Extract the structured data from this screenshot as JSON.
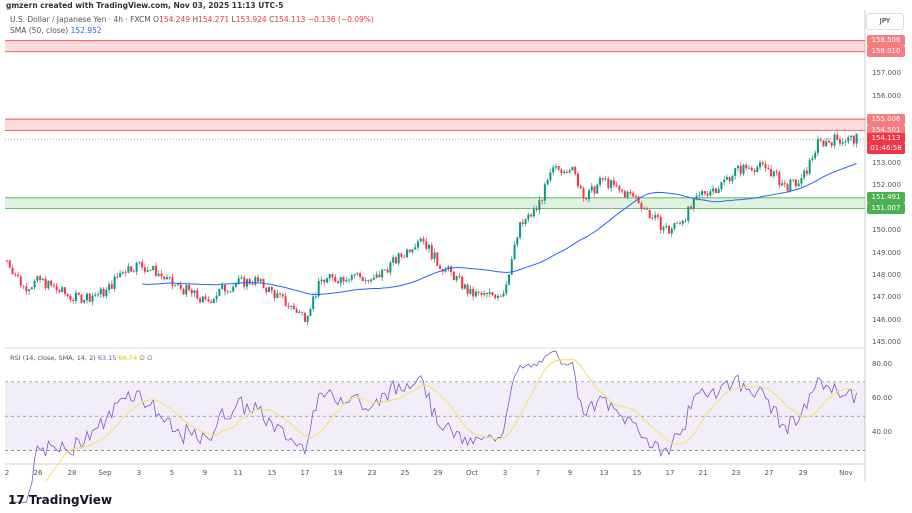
{
  "header": {
    "credit": "gmzern created with TradingView.com, Nov 03, 2025 11:13 UTC-5",
    "symbol": "U.S. Dollar / Japanese Yen · 4h · FXCM",
    "open_label": "O",
    "open": "154.249",
    "high_label": "H",
    "high": "154.271",
    "low_label": "L",
    "low": "153.924",
    "close_label": "C",
    "close": "154.113",
    "change": "−0.136 (−0.09%)",
    "sma_label": "SMA (50, close)",
    "sma_value": "152.952"
  },
  "rsi_legend": {
    "label": "RSI (14, close, SMA, 14, 2)",
    "rsi": "63.15",
    "rsi_sma": "66.74",
    "extra1": "∅",
    "extra2": "∅"
  },
  "currency": "JPY",
  "footer": {
    "logo": "TradingView"
  },
  "colors": {
    "up": "#089981",
    "down": "#f23645",
    "sma": "#2962ff",
    "rsi": "#7e57c2",
    "rsi_sma": "#f5e27a",
    "resistance_zone": "#f23645",
    "support_zone": "#4caf50"
  },
  "chart_data": {
    "type": "candlestick",
    "timeframe": "4h",
    "price_axis": {
      "ticks": [
        "157.000",
        "156.000",
        "153.000",
        "152.000",
        "150.000",
        "149.000",
        "148.000",
        "147.000",
        "146.000",
        "145.000"
      ],
      "range": [
        144.9,
        159.6
      ]
    },
    "zones": [
      {
        "type": "resistance",
        "top": "158.506",
        "bottom": "158.010"
      },
      {
        "type": "resistance",
        "top": "155.006",
        "bottom": "154.501"
      },
      {
        "type": "support",
        "top": "151.491",
        "bottom": "151.007"
      }
    ],
    "last_price": "154.113",
    "countdown": "01:46:58",
    "approx_closes": [
      [
        "2025-08-22",
        148.7
      ],
      [
        "2025-08-25",
        147.5
      ],
      [
        "2025-08-26",
        147.8
      ],
      [
        "2025-08-27",
        147.4
      ],
      [
        "2025-08-28",
        147.0
      ],
      [
        "2025-08-29",
        147.1
      ],
      [
        "2025-09-01",
        147.3
      ],
      [
        "2025-09-02",
        148.3
      ],
      [
        "2025-09-03",
        148.5
      ],
      [
        "2025-09-04",
        148.2
      ],
      [
        "2025-09-05",
        147.6
      ],
      [
        "2025-09-08",
        147.3
      ],
      [
        "2025-09-09",
        146.8
      ],
      [
        "2025-09-10",
        147.4
      ],
      [
        "2025-09-11",
        147.7
      ],
      [
        "2025-09-12",
        147.8
      ],
      [
        "2025-09-15",
        147.3
      ],
      [
        "2025-09-16",
        146.7
      ],
      [
        "2025-09-17",
        146.2
      ],
      [
        "2025-09-18",
        147.8
      ],
      [
        "2025-09-19",
        147.9
      ],
      [
        "2025-09-22",
        148.1
      ],
      [
        "2025-09-23",
        147.7
      ],
      [
        "2025-09-24",
        148.4
      ],
      [
        "2025-09-25",
        149.0
      ],
      [
        "2025-09-26",
        149.8
      ],
      [
        "2025-09-29",
        148.6
      ],
      [
        "2025-09-30",
        148.0
      ],
      [
        "2025-10-01",
        147.2
      ],
      [
        "2025-10-02",
        147.1
      ],
      [
        "2025-10-03",
        147.3
      ],
      [
        "2025-10-06",
        150.2
      ],
      [
        "2025-10-07",
        151.0
      ],
      [
        "2025-10-08",
        152.7
      ],
      [
        "2025-10-09",
        152.9
      ],
      [
        "2025-10-10",
        151.5
      ],
      [
        "2025-10-13",
        152.3
      ],
      [
        "2025-10-14",
        151.8
      ],
      [
        "2025-10-15",
        151.5
      ],
      [
        "2025-10-16",
        150.6
      ],
      [
        "2025-10-17",
        150.0
      ],
      [
        "2025-10-20",
        150.7
      ],
      [
        "2025-10-21",
        151.7
      ],
      [
        "2025-10-22",
        152.0
      ],
      [
        "2025-10-23",
        152.7
      ],
      [
        "2025-10-24",
        152.9
      ],
      [
        "2025-10-27",
        152.8
      ],
      [
        "2025-10-28",
        152.0
      ],
      [
        "2025-10-29",
        152.2
      ],
      [
        "2025-10-30",
        153.9
      ],
      [
        "2025-10-31",
        154.1
      ],
      [
        "2025-11-03",
        154.11
      ]
    ],
    "rsi_axis": {
      "ticks": [
        "80.00",
        "60.00",
        "40.00"
      ],
      "bands": [
        70,
        50,
        30
      ]
    },
    "time_axis": {
      "ticks": [
        "2",
        "26",
        "28",
        "Sep",
        "3",
        "5",
        "9",
        "11",
        "15",
        "17",
        "19",
        "23",
        "25",
        "29",
        "Oct",
        "3",
        "7",
        "9",
        "13",
        "15",
        "17",
        "21",
        "23",
        "27",
        "29",
        "Nov"
      ]
    }
  }
}
